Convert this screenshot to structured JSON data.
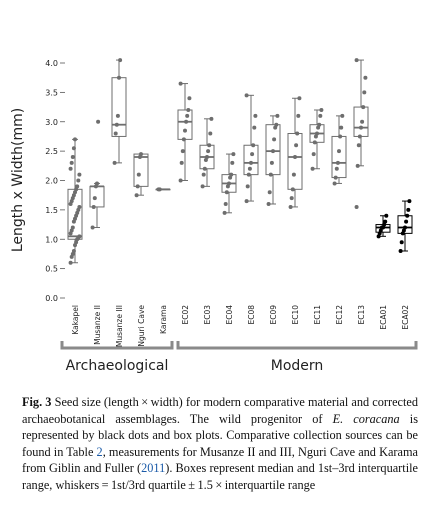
{
  "chart_data": {
    "type": "box",
    "y_label": "Length x Width(mm)",
    "ylim": [
      0,
      4.2
    ],
    "yticks": [
      {
        "value": 0,
        "label": "0.0"
      },
      {
        "value": 0.5,
        "label": "0.5"
      },
      {
        "value": 1,
        "label": "1.0"
      },
      {
        "value": 1.5,
        "label": "1.5"
      },
      {
        "value": 2,
        "label": "2.0"
      },
      {
        "value": 2.5,
        "label": "2.5"
      },
      {
        "value": 3,
        "label": "3.0"
      },
      {
        "value": 3.5,
        "label": "3.5"
      },
      {
        "value": 4,
        "label": "4.0"
      }
    ],
    "categories": [
      "Kakapel",
      "Musanze II",
      "Musanze III",
      "Nguri Cave",
      "Karama",
      "EC02",
      "EC03",
      "EC04",
      "EC08",
      "EC09",
      "EC10",
      "EC11",
      "EC12",
      "EC13",
      "ECA01",
      "ECA02"
    ],
    "colors": [
      "#6e6e6e",
      "#6e6e6e",
      "#6e6e6e",
      "#6e6e6e",
      "#6e6e6e",
      "#6e6e6e",
      "#6e6e6e",
      "#6e6e6e",
      "#6e6e6e",
      "#6e6e6e",
      "#6e6e6e",
      "#6e6e6e",
      "#6e6e6e",
      "#6e6e6e",
      "#000000",
      "#000000"
    ],
    "groups": [
      "Archaeological",
      "Modern"
    ],
    "boxes": [
      {
        "whislo": 0.6,
        "q1": 1.0,
        "med": 1.05,
        "q3": 1.85,
        "whishi": 2.7
      },
      {
        "whislo": 1.2,
        "q1": 1.55,
        "med": 1.9,
        "q3": 1.9,
        "whishi": 1.95
      },
      {
        "whislo": 2.3,
        "q1": 2.75,
        "med": 2.95,
        "q3": 3.75,
        "whishi": 4.05
      },
      {
        "whislo": 1.75,
        "q1": 1.9,
        "med": 2.4,
        "q3": 2.45,
        "whishi": 2.45
      },
      {
        "whislo": 1.85,
        "q1": 1.85,
        "med": 1.85,
        "q3": 1.85,
        "whishi": 1.85
      },
      {
        "whislo": 2.0,
        "q1": 2.7,
        "med": 3.0,
        "q3": 3.2,
        "whishi": 3.65
      },
      {
        "whislo": 1.9,
        "q1": 2.2,
        "med": 2.4,
        "q3": 2.6,
        "whishi": 3.05
      },
      {
        "whislo": 1.45,
        "q1": 1.8,
        "med": 1.95,
        "q3": 2.1,
        "whishi": 2.45
      },
      {
        "whislo": 1.65,
        "q1": 2.1,
        "med": 2.3,
        "q3": 2.6,
        "whishi": 3.45
      },
      {
        "whislo": 1.6,
        "q1": 2.1,
        "med": 2.5,
        "q3": 2.95,
        "whishi": 3.1
      },
      {
        "whislo": 1.55,
        "q1": 1.85,
        "med": 2.4,
        "q3": 2.8,
        "whishi": 3.4
      },
      {
        "whislo": 2.2,
        "q1": 2.65,
        "med": 2.8,
        "q3": 2.95,
        "whishi": 3.2
      },
      {
        "whislo": 1.95,
        "q1": 2.05,
        "med": 2.3,
        "q3": 2.75,
        "whishi": 3.1
      },
      {
        "whislo": 2.25,
        "q1": 2.75,
        "med": 2.9,
        "q3": 3.25,
        "whishi": 4.05
      },
      {
        "whislo": 1.05,
        "q1": 1.12,
        "med": 1.2,
        "q3": 1.25,
        "whishi": 1.4
      },
      {
        "whislo": 0.8,
        "q1": 1.1,
        "med": 1.2,
        "q3": 1.4,
        "whishi": 1.65
      }
    ],
    "points": [
      [
        0.6,
        0.7,
        0.75,
        0.8,
        0.9,
        0.95,
        1.0,
        1.02,
        1.05,
        1.1,
        1.15,
        1.2,
        1.3,
        1.35,
        1.4,
        1.45,
        1.5,
        1.55,
        1.6,
        1.65,
        1.7,
        1.75,
        1.8,
        1.85,
        1.9,
        2.0,
        2.1,
        2.2,
        2.3,
        2.4,
        2.55,
        2.7
      ],
      [
        1.2,
        1.55,
        1.7,
        1.9,
        1.95,
        3.0
      ],
      [
        2.3,
        2.8,
        2.95,
        3.1,
        3.75,
        4.05
      ],
      [
        1.75,
        1.9,
        2.1,
        2.4,
        2.45
      ],
      [
        1.85,
        1.85
      ],
      [
        2.0,
        2.3,
        2.5,
        2.7,
        2.85,
        3.0,
        3.1,
        3.2,
        3.4,
        3.65
      ],
      [
        1.9,
        2.1,
        2.2,
        2.35,
        2.4,
        2.5,
        2.6,
        2.8,
        3.05
      ],
      [
        1.45,
        1.6,
        1.8,
        1.9,
        1.95,
        2.05,
        2.1,
        2.3,
        2.45
      ],
      [
        1.65,
        1.9,
        2.1,
        2.2,
        2.3,
        2.45,
        2.6,
        2.9,
        3.1,
        3.45
      ],
      [
        1.6,
        1.8,
        2.1,
        2.3,
        2.5,
        2.7,
        2.9,
        2.95,
        3.1
      ],
      [
        1.55,
        1.7,
        1.85,
        2.1,
        2.4,
        2.6,
        2.8,
        3.1,
        3.4
      ],
      [
        2.2,
        2.45,
        2.65,
        2.75,
        2.8,
        2.9,
        2.95,
        3.1,
        3.2
      ],
      [
        1.95,
        2.05,
        2.2,
        2.3,
        2.5,
        2.75,
        2.9,
        3.1
      ],
      [
        1.55,
        2.25,
        2.6,
        2.75,
        2.9,
        3.0,
        3.25,
        3.5,
        3.75,
        4.05
      ],
      [
        1.05,
        1.1,
        1.15,
        1.2,
        1.2,
        1.25,
        1.3,
        1.4
      ],
      [
        0.8,
        0.95,
        1.1,
        1.15,
        1.2,
        1.3,
        1.4,
        1.5,
        1.65
      ]
    ]
  },
  "caption": {
    "label": "Fig. 3",
    "segments": [
      "Seed size (length × width) for modern comparative material and corrected archaeobotanical assemblages. The wild progenitor of ",
      "E. coracana",
      " is represented by black dots and box plots. Comparative collection sources can be found in Table ",
      "2",
      ", measurements for Musanze II and III, Nguri Cave and Karama from Giblin and Fuller (",
      "2011",
      "). Boxes represent median and 1st–3rd interquartile range, whiskers = 1st/3rd quartile ± 1.5 × interquartile range"
    ]
  }
}
